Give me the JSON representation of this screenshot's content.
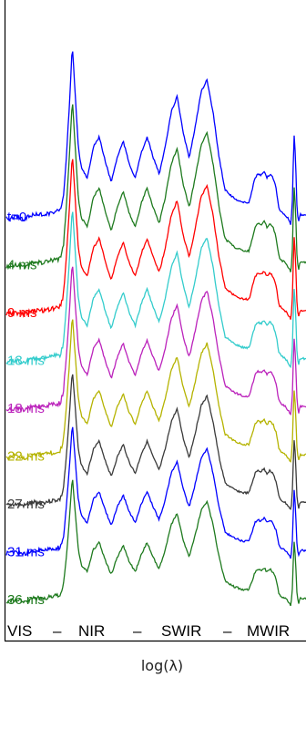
{
  "chart_data": {
    "type": "line",
    "x_axis": {
      "label": "log(λ)",
      "scale": "log",
      "band_labels": [
        "VIS",
        "NIR",
        "SWIR",
        "MWIR"
      ],
      "separator": "–"
    },
    "y_axis": {
      "label": "",
      "ticks": []
    },
    "grid": false,
    "legend": "inline labels at left of each trace",
    "shape": {
      "x": [
        0.0,
        0.03,
        0.06,
        0.09,
        0.12,
        0.15,
        0.18,
        0.19,
        0.2,
        0.21,
        0.22,
        0.23,
        0.24,
        0.25,
        0.27,
        0.29,
        0.31,
        0.33,
        0.35,
        0.37,
        0.39,
        0.41,
        0.43,
        0.45,
        0.47,
        0.49,
        0.51,
        0.53,
        0.55,
        0.57,
        0.59,
        0.61,
        0.63,
        0.65,
        0.67,
        0.69,
        0.71,
        0.73,
        0.76,
        0.79,
        0.81,
        0.83,
        0.84,
        0.85,
        0.86,
        0.87,
        0.88,
        0.89,
        0.9,
        0.91,
        0.92,
        0.93,
        0.94,
        0.95,
        0.955,
        0.96,
        0.965,
        0.97,
        0.975,
        0.98,
        0.99,
        1.0
      ],
      "y": [
        0.0,
        0.01,
        0.0,
        0.02,
        0.02,
        0.03,
        0.04,
        0.1,
        0.3,
        0.55,
        0.85,
        0.6,
        0.35,
        0.25,
        0.2,
        0.35,
        0.4,
        0.28,
        0.18,
        0.3,
        0.38,
        0.27,
        0.2,
        0.32,
        0.4,
        0.3,
        0.22,
        0.35,
        0.52,
        0.6,
        0.42,
        0.3,
        0.45,
        0.62,
        0.68,
        0.52,
        0.3,
        0.14,
        0.1,
        0.08,
        0.08,
        0.2,
        0.22,
        0.21,
        0.23,
        0.2,
        0.22,
        0.2,
        0.15,
        0.05,
        0.03,
        0.02,
        0.0,
        -0.03,
        0.1,
        0.42,
        0.3,
        0.05,
        -0.02,
        0.02,
        0.02,
        0.02
      ]
    },
    "series": [
      {
        "name": "t=0",
        "color": "#0000ff"
      },
      {
        "name": "4 ms",
        "color": "#1e7a1e"
      },
      {
        "name": "9 ms",
        "color": "#ff0000"
      },
      {
        "name": "13 ms",
        "color": "#33cccc"
      },
      {
        "name": "18 ms",
        "color": "#bb22bb"
      },
      {
        "name": "22 ms",
        "color": "#b5b300"
      },
      {
        "name": "27 ms",
        "color": "#3a3a3a"
      },
      {
        "name": "31 ms",
        "color": "#0000ff"
      },
      {
        "name": "36 ms",
        "color": "#1e7a1e"
      }
    ]
  }
}
